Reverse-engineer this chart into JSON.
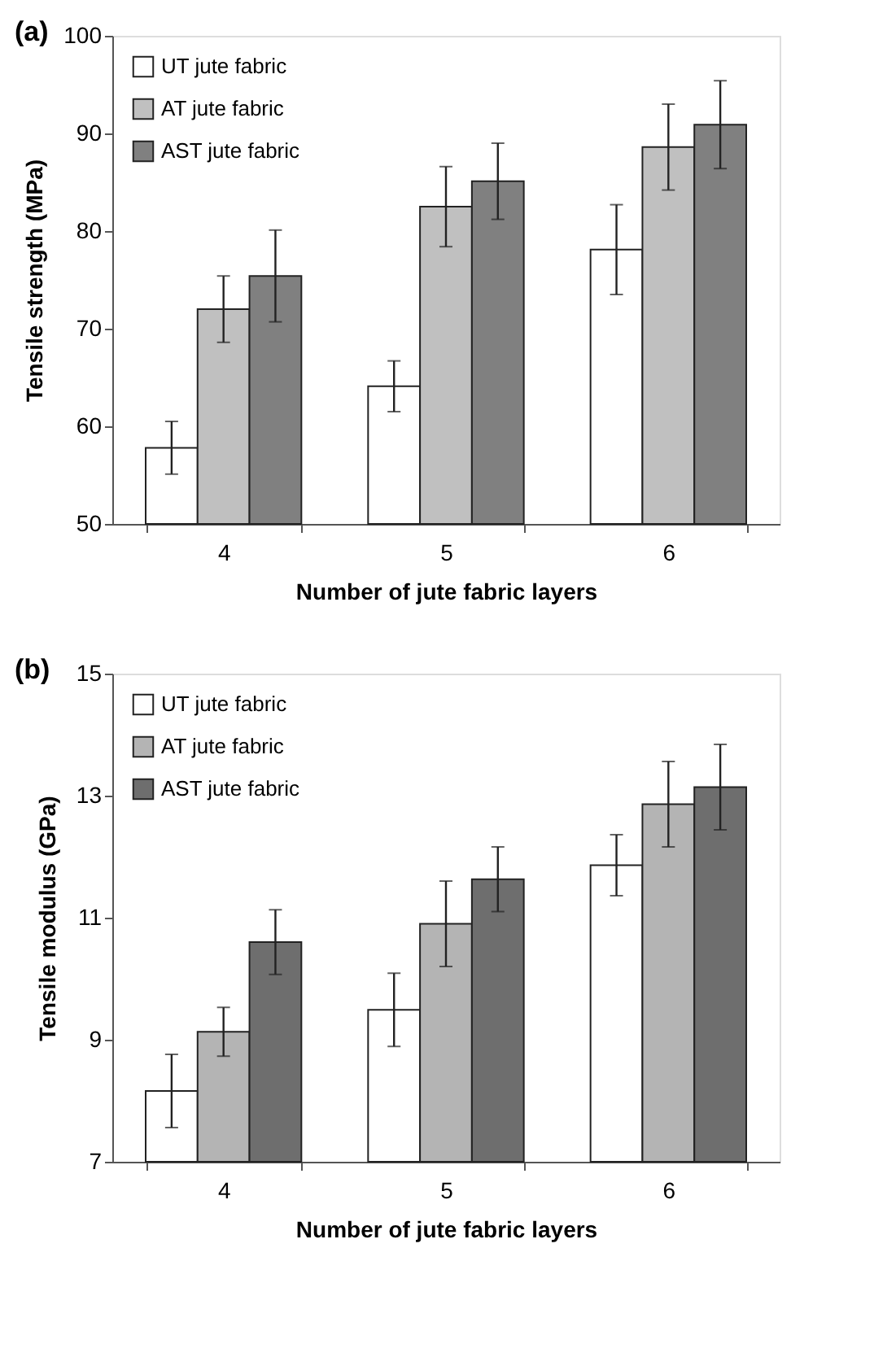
{
  "chart_data": [
    {
      "type": "bar",
      "title": "(a)",
      "xlabel": "Number of jute fabric layers",
      "ylabel": "Tensile strength (MPa)",
      "categories": [
        "4",
        "5",
        "6"
      ],
      "ylim": [
        50,
        100
      ],
      "yticks": [
        50,
        60,
        70,
        80,
        90,
        100
      ],
      "grid": false,
      "legend": "top left",
      "series": [
        {
          "name": "UT jute fabric",
          "color": "#ffffff",
          "values": [
            57.8,
            64.1,
            78.1
          ],
          "errors": [
            2.7,
            2.6,
            4.6
          ]
        },
        {
          "name": "AT jute fabric",
          "color": "#c0c0c0",
          "values": [
            72.0,
            82.5,
            88.6
          ],
          "errors": [
            3.4,
            4.1,
            4.4
          ]
        },
        {
          "name": "AST jute fabric",
          "color": "#808080",
          "values": [
            75.4,
            85.1,
            90.9
          ],
          "errors": [
            4.7,
            3.9,
            4.5
          ]
        }
      ]
    },
    {
      "type": "bar",
      "title": "(b)",
      "xlabel": "Number of jute fabric layers",
      "ylabel": "Tensile modulus (GPa)",
      "categories": [
        "4",
        "5",
        "6"
      ],
      "ylim": [
        7,
        15
      ],
      "yticks": [
        7,
        9,
        11,
        13,
        15
      ],
      "grid": false,
      "legend": "top left",
      "series": [
        {
          "name": "UT jute fabric",
          "color": "#ffffff",
          "values": [
            8.16,
            9.49,
            11.86
          ],
          "errors": [
            0.6,
            0.6,
            0.5
          ]
        },
        {
          "name": "AT jute fabric",
          "color": "#b4b4b4",
          "values": [
            9.13,
            10.9,
            12.86
          ],
          "errors": [
            0.4,
            0.7,
            0.7
          ]
        },
        {
          "name": "AST jute fabric",
          "color": "#6e6e6e",
          "values": [
            10.6,
            11.63,
            13.14
          ],
          "errors": [
            0.53,
            0.53,
            0.7
          ]
        }
      ]
    }
  ]
}
